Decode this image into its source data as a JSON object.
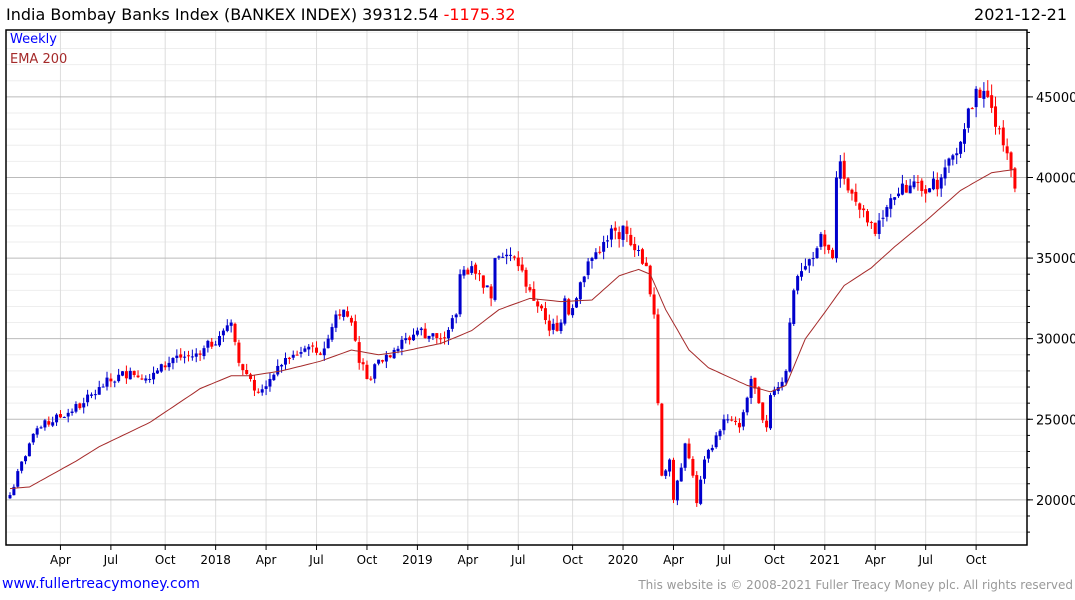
{
  "header": {
    "title": "India Bombay Banks Index (BANKEX INDEX)",
    "last": "39312.54",
    "change": "-1175.32",
    "date": "2021-12-21"
  },
  "legend": {
    "period": "Weekly",
    "indicator": "EMA 200"
  },
  "footer": {
    "site": "www.fullertreacymoney.com",
    "copyright": "This website is © 2008-2021 Fuller Treacy Money plc. All rights reserved"
  },
  "colors": {
    "up": "#0000cc",
    "down": "#ff0000",
    "ema": "#a52a2a",
    "grid": "#dddddd"
  },
  "chart_data": {
    "type": "candlestick",
    "title": "India Bombay Banks Index (BANKEX INDEX)",
    "frequency": "weekly",
    "ylim": [
      17200,
      49150
    ],
    "y_ticks": [
      20000,
      25000,
      30000,
      35000,
      40000,
      45000
    ],
    "x_ticks": [
      {
        "label": "Apr",
        "week": 13
      },
      {
        "label": "Jul",
        "week": 26
      },
      {
        "label": "Oct",
        "week": 40
      },
      {
        "label": "2018",
        "week": 53
      },
      {
        "label": "Apr",
        "week": 66
      },
      {
        "label": "Jul",
        "week": 79
      },
      {
        "label": "Oct",
        "week": 92
      },
      {
        "label": "2019",
        "week": 105
      },
      {
        "label": "Apr",
        "week": 118
      },
      {
        "label": "Jul",
        "week": 131
      },
      {
        "label": "Oct",
        "week": 145
      },
      {
        "label": "2020",
        "week": 158
      },
      {
        "label": "Apr",
        "week": 171
      },
      {
        "label": "Jul",
        "week": 184
      },
      {
        "label": "Oct",
        "week": 197
      },
      {
        "label": "2021",
        "week": 210
      },
      {
        "label": "Apr",
        "week": 223
      },
      {
        "label": "Jul",
        "week": 236
      },
      {
        "label": "Oct",
        "week": 249
      }
    ],
    "total_weeks": 260,
    "close_anchors": [
      [
        0,
        20300
      ],
      [
        5,
        23500
      ],
      [
        8,
        24500
      ],
      [
        19,
        26000
      ],
      [
        23,
        27000
      ],
      [
        31,
        28000
      ],
      [
        36,
        27500
      ],
      [
        42,
        28800
      ],
      [
        49,
        29000
      ],
      [
        55,
        30500
      ],
      [
        57,
        31000
      ],
      [
        59,
        28500
      ],
      [
        62,
        27500
      ],
      [
        64,
        26700
      ],
      [
        67,
        27500
      ],
      [
        71,
        28800
      ],
      [
        73,
        29000
      ],
      [
        77,
        29500
      ],
      [
        80,
        29000
      ],
      [
        82,
        30000
      ],
      [
        84,
        31500
      ],
      [
        86,
        31800
      ],
      [
        88,
        31000
      ],
      [
        90,
        28500
      ],
      [
        93,
        27500
      ],
      [
        95,
        28700
      ],
      [
        99,
        29300
      ],
      [
        105,
        30500
      ],
      [
        111,
        30000
      ],
      [
        115,
        31500
      ],
      [
        116,
        34000
      ],
      [
        119,
        34500
      ],
      [
        121,
        34000
      ],
      [
        124,
        32500
      ],
      [
        125,
        35000
      ],
      [
        129,
        35200
      ],
      [
        131,
        34500
      ],
      [
        134,
        33000
      ],
      [
        136,
        32000
      ],
      [
        139,
        30500
      ],
      [
        142,
        31000
      ],
      [
        143,
        32500
      ],
      [
        144,
        31500
      ],
      [
        147,
        33500
      ],
      [
        150,
        35000
      ],
      [
        153,
        36000
      ],
      [
        156,
        36700
      ],
      [
        159,
        36500
      ],
      [
        162,
        35500
      ],
      [
        164,
        34500
      ],
      [
        166,
        31500
      ],
      [
        167,
        26000
      ],
      [
        168,
        21500
      ],
      [
        170,
        22500
      ],
      [
        171,
        20000
      ],
      [
        173,
        22000
      ],
      [
        174,
        23500
      ],
      [
        176,
        21500
      ],
      [
        177,
        19800
      ],
      [
        179,
        22500
      ],
      [
        182,
        24000
      ],
      [
        184,
        25000
      ],
      [
        188,
        24500
      ],
      [
        191,
        27500
      ],
      [
        193,
        26000
      ],
      [
        195,
        24500
      ],
      [
        196,
        26500
      ],
      [
        198,
        27000
      ],
      [
        200,
        28000
      ],
      [
        201,
        31000
      ],
      [
        202,
        33000
      ],
      [
        205,
        34500
      ],
      [
        207,
        35000
      ],
      [
        209,
        36500
      ],
      [
        211,
        35500
      ],
      [
        212,
        35000
      ],
      [
        213,
        40000
      ],
      [
        214,
        41000
      ],
      [
        217,
        39000
      ],
      [
        219,
        38000
      ],
      [
        223,
        36500
      ],
      [
        225,
        37500
      ],
      [
        229,
        39000
      ],
      [
        232,
        39500
      ],
      [
        236,
        39000
      ],
      [
        240,
        40000
      ],
      [
        244,
        41500
      ],
      [
        246,
        43000
      ],
      [
        249,
        45500
      ],
      [
        252,
        45000
      ],
      [
        255,
        43000
      ],
      [
        257,
        41500
      ],
      [
        258,
        40500
      ],
      [
        259,
        39312.54
      ]
    ],
    "ema200_anchors": [
      [
        0,
        20700
      ],
      [
        5,
        20800
      ],
      [
        17,
        22400
      ],
      [
        23,
        23300
      ],
      [
        36,
        24800
      ],
      [
        49,
        26900
      ],
      [
        57,
        27700
      ],
      [
        62,
        27700
      ],
      [
        70,
        28000
      ],
      [
        80,
        28600
      ],
      [
        88,
        29300
      ],
      [
        95,
        29000
      ],
      [
        101,
        29200
      ],
      [
        111,
        29700
      ],
      [
        119,
        30500
      ],
      [
        126,
        31800
      ],
      [
        134,
        32500
      ],
      [
        142,
        32300
      ],
      [
        150,
        32400
      ],
      [
        157,
        33900
      ],
      [
        162,
        34300
      ],
      [
        165,
        34000
      ],
      [
        169,
        31800
      ],
      [
        175,
        29300
      ],
      [
        180,
        28200
      ],
      [
        190,
        27100
      ],
      [
        196,
        26700
      ],
      [
        200,
        27100
      ],
      [
        205,
        30000
      ],
      [
        209,
        31300
      ],
      [
        215,
        33300
      ],
      [
        222,
        34400
      ],
      [
        228,
        35700
      ],
      [
        236,
        37300
      ],
      [
        245,
        39200
      ],
      [
        253,
        40300
      ],
      [
        259,
        40500
      ]
    ]
  }
}
